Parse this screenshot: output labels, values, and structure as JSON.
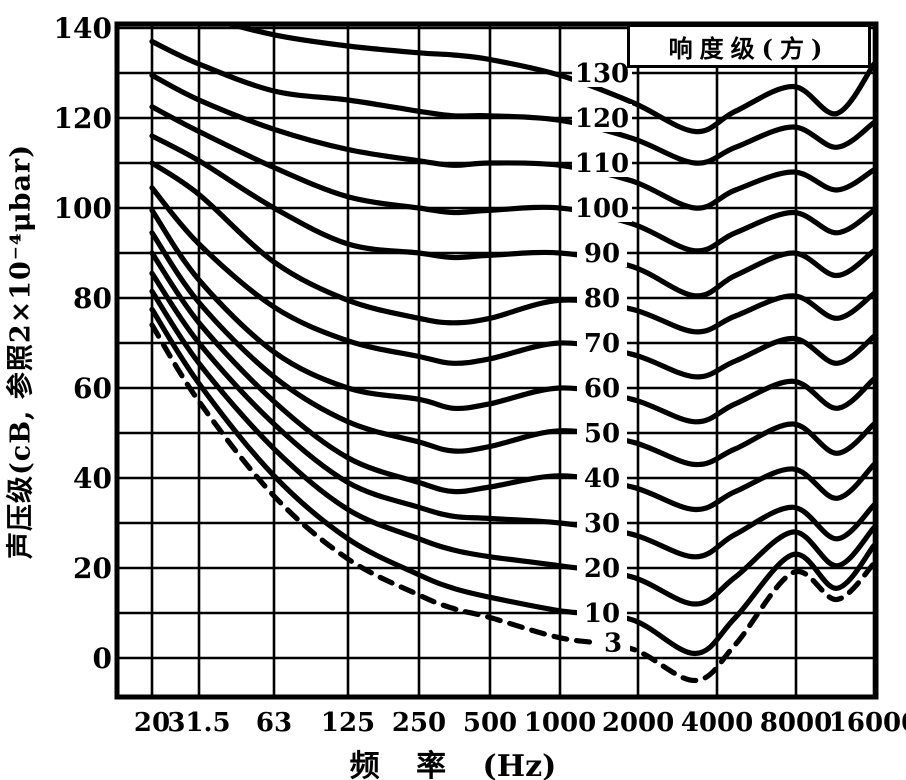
{
  "chart_data": {
    "type": "line",
    "title": "",
    "legend_title": "响度级(方)",
    "xlabel": "频 率 (Hz)",
    "ylabel": "声压级(cB, 参照2×10⁻⁴μbar)",
    "x_scale": "log",
    "x_ticks": [
      "20",
      "31.5",
      "63",
      "125",
      "250",
      "500",
      "1000",
      "2000",
      "4000",
      "8000",
      "16000"
    ],
    "x_tick_values": [
      20,
      31.5,
      63,
      125,
      250,
      500,
      1000,
      2000,
      4000,
      8000,
      16000
    ],
    "y_ticks": [
      "140",
      "120",
      "100",
      "80",
      "60",
      "40",
      "20",
      "0"
    ],
    "y_tick_values": [
      140,
      120,
      100,
      80,
      60,
      40,
      20,
      0
    ],
    "ylim": [
      -10,
      141
    ],
    "grid": "on",
    "grid_step_db": 10,
    "legend_position": "top-right",
    "line_color": "#000000",
    "background": "#ffffff",
    "x": [
      20,
      31.5,
      63,
      125,
      250,
      350,
      500,
      1000,
      1900,
      3300,
      4700,
      7800,
      11500,
      16000
    ],
    "series": [
      {
        "name": "130",
        "dashed": false,
        "values": [
          148,
          143,
          138.5,
          136,
          134.5,
          134,
          133,
          129.5,
          123.5,
          117,
          121.5,
          127,
          121,
          132
        ]
      },
      {
        "name": "120",
        "dashed": false,
        "values": [
          137,
          132,
          126,
          124,
          121.5,
          120.5,
          120.5,
          119.5,
          115.5,
          110,
          113.5,
          118,
          113.5,
          119
        ]
      },
      {
        "name": "110",
        "dashed": false,
        "values": [
          129.5,
          124,
          117.5,
          113,
          110.5,
          109.5,
          110,
          109.5,
          106,
          100,
          104,
          108,
          104,
          108.5
        ]
      },
      {
        "name": "100",
        "dashed": false,
        "values": [
          122.5,
          117,
          109,
          102.5,
          100,
          99,
          99.5,
          100,
          96.5,
          90.5,
          94.5,
          99,
          94.5,
          99.5
        ]
      },
      {
        "name": "90",
        "dashed": false,
        "values": [
          116,
          110.5,
          100,
          92,
          90,
          89,
          89.5,
          90,
          87,
          80.5,
          85,
          90,
          85,
          90.5
        ]
      },
      {
        "name": "80",
        "dashed": false,
        "values": [
          110,
          103,
          88,
          79.5,
          75.5,
          74.5,
          75.5,
          79.5,
          77.5,
          72.5,
          76,
          80.5,
          75.5,
          81
        ]
      },
      {
        "name": "70",
        "dashed": false,
        "values": [
          104.5,
          92,
          78,
          70.5,
          67,
          65.5,
          66.5,
          70,
          67.5,
          62.5,
          66,
          71,
          65.5,
          71.5
        ]
      },
      {
        "name": "60",
        "dashed": false,
        "values": [
          99.5,
          84,
          68,
          60,
          57.5,
          55.5,
          56.5,
          60,
          57.5,
          52.5,
          56.5,
          61.5,
          55.5,
          62
        ]
      },
      {
        "name": "50",
        "dashed": false,
        "values": [
          94.5,
          79,
          62.5,
          52.5,
          48,
          46,
          47,
          50.5,
          48,
          43,
          46.5,
          52,
          45.5,
          52
        ]
      },
      {
        "name": "40",
        "dashed": false,
        "values": [
          90,
          74.5,
          57,
          44.5,
          39,
          37,
          38,
          40.5,
          38,
          33,
          37,
          42,
          35.5,
          43
        ]
      },
      {
        "name": "30",
        "dashed": false,
        "values": [
          85.5,
          70,
          52,
          39,
          33.5,
          31.5,
          31,
          30,
          27.5,
          22.5,
          27.5,
          33.5,
          26.5,
          34
        ]
      },
      {
        "name": "20",
        "dashed": false,
        "values": [
          81.5,
          65.5,
          46.5,
          33,
          26.5,
          24,
          22.5,
          20.5,
          18,
          12,
          18,
          28,
          20.5,
          29
        ]
      },
      {
        "name": "10",
        "dashed": false,
        "values": [
          77.5,
          61,
          40.5,
          26.5,
          18.5,
          15.5,
          13.5,
          10.5,
          8.5,
          1,
          9,
          23,
          15.5,
          25
        ]
      },
      {
        "name": "3",
        "dashed": true,
        "values": [
          74,
          57,
          36,
          22,
          14,
          11,
          9,
          4.5,
          2,
          -5,
          3,
          19,
          13,
          21
        ]
      }
    ],
    "curve_labels": [
      "130",
      "120",
      "110",
      "100",
      "90",
      "80",
      "70",
      "60",
      "50",
      "40",
      "30",
      "20",
      "10",
      "3"
    ],
    "curve_label_note": "loudness level in phon; labels sit in a gap of each curve near 1400 Hz"
  }
}
